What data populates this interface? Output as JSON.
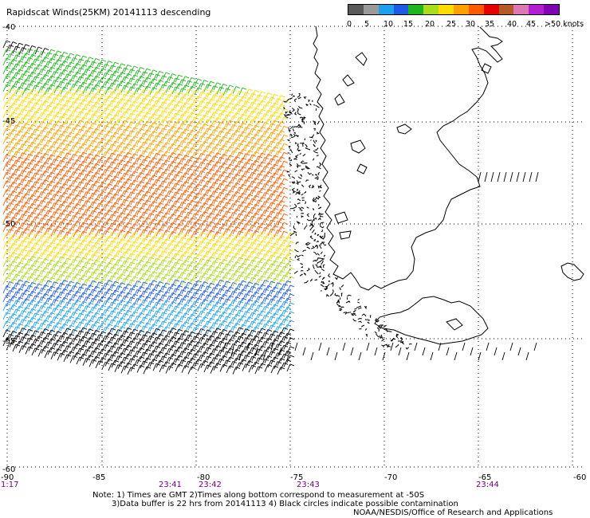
{
  "title": "Rapidscat Winds(25KM) 20141113 descending",
  "colorbar": {
    "colors": [
      "#5a5a5a",
      "#9a9a9a",
      "#1ea0f0",
      "#1e5ae6",
      "#1eb41e",
      "#aadc1e",
      "#ffdc00",
      "#ffa000",
      "#ff5a00",
      "#e60000",
      "#b45a28",
      "#dc78b4",
      "#b41ed2",
      "#8200b4"
    ],
    "labels": [
      "0",
      "5",
      "10",
      "15",
      "20",
      "25",
      "30",
      "35",
      "40",
      "45",
      ">50 knots"
    ]
  },
  "axes": {
    "x_ticks": [
      "-90",
      "-85",
      "-80",
      "-75",
      "-70",
      "-65",
      "-60"
    ],
    "y_ticks": [
      "-40",
      "-45",
      "-50",
      "-55",
      "-60"
    ]
  },
  "times": [
    "1:17",
    "23:41",
    "23:42",
    "23:43",
    "23:44"
  ],
  "notes": {
    "line1": "Note: 1) Times are GMT 2)Times along bottom correspond to measurement at -50S",
    "line2": "3)Data buffer is 22 hrs from 20141113 4) Black circles indicate possible contamination",
    "credit": "NOAA/NESDIS/Office of Research and Applications"
  }
}
